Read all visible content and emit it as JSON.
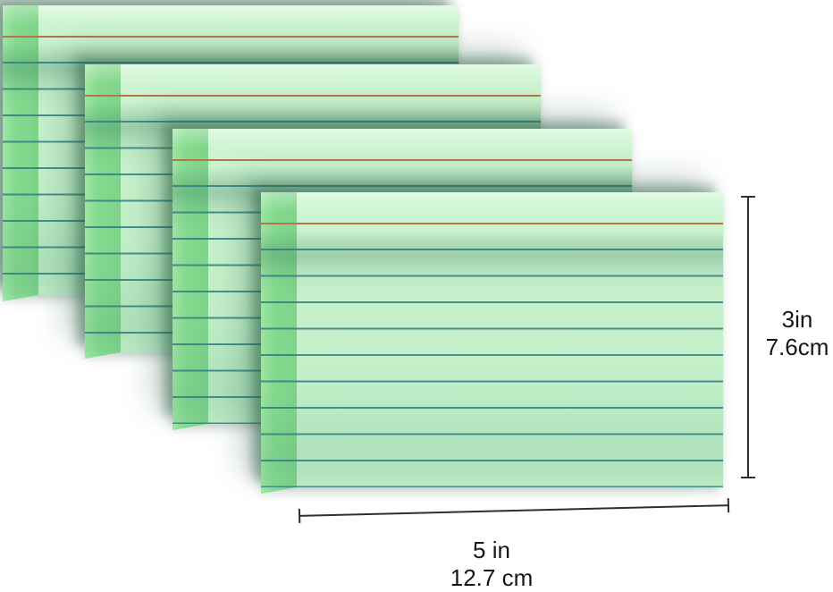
{
  "scene": {
    "description": "Four staggered stacks of green ruled index cards, product illustration",
    "background_color": "#ffffff",
    "stack_count": 4
  },
  "card": {
    "face_color": "#c9f2cc",
    "edge_color": "#7ed38a",
    "rule_line_color": "#2f7f81",
    "headline_rule_color": "#b5764a"
  },
  "dimensions": {
    "line_color": "#2f2f2f",
    "height": {
      "line1": "3in",
      "line2": "7.6cm"
    },
    "width": {
      "line1": "5 in",
      "line2": "12.7 cm"
    }
  }
}
